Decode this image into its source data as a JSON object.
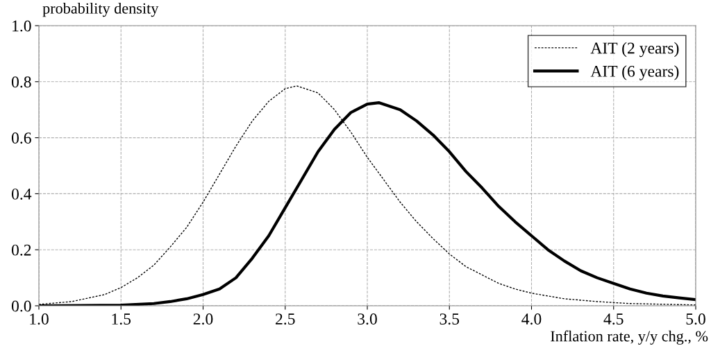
{
  "chart_data": {
    "type": "line",
    "ylabel": "probability density",
    "xlabel": "Inflation rate, y/y chg., %",
    "xlim": [
      1.0,
      5.0
    ],
    "ylim": [
      0.0,
      1.0
    ],
    "xticks": [
      {
        "value": 1.0,
        "label": "1.0"
      },
      {
        "value": 1.5,
        "label": "1.5"
      },
      {
        "value": 2.0,
        "label": "2.0"
      },
      {
        "value": 2.5,
        "label": "2.5"
      },
      {
        "value": 3.0,
        "label": "3.0"
      },
      {
        "value": 3.5,
        "label": "3.5"
      },
      {
        "value": 4.0,
        "label": "4.0"
      },
      {
        "value": 4.5,
        "label": "4.5"
      },
      {
        "value": 5.0,
        "label": "5.0"
      }
    ],
    "yticks": [
      {
        "value": 0.0,
        "label": "0.0"
      },
      {
        "value": 0.2,
        "label": "0.2"
      },
      {
        "value": 0.4,
        "label": "0.4"
      },
      {
        "value": 0.6,
        "label": "0.6"
      },
      {
        "value": 0.8,
        "label": "0.8"
      },
      {
        "value": 1.0,
        "label": "1.0"
      }
    ],
    "grid": true,
    "legend": "top right",
    "series": [
      {
        "name": "AIT (2 years)",
        "color": "#000000",
        "line_style": "dotted",
        "x": [
          1.0,
          1.2,
          1.4,
          1.5,
          1.6,
          1.7,
          1.8,
          1.9,
          2.0,
          2.1,
          2.2,
          2.3,
          2.4,
          2.5,
          2.57,
          2.7,
          2.8,
          2.9,
          3.0,
          3.1,
          3.2,
          3.3,
          3.4,
          3.5,
          3.6,
          3.7,
          3.8,
          3.9,
          4.0,
          4.2,
          4.4,
          4.6,
          5.0
        ],
        "values": [
          0.005,
          0.015,
          0.04,
          0.065,
          0.1,
          0.145,
          0.21,
          0.28,
          0.37,
          0.47,
          0.57,
          0.66,
          0.73,
          0.775,
          0.785,
          0.76,
          0.7,
          0.62,
          0.53,
          0.45,
          0.37,
          0.3,
          0.24,
          0.185,
          0.14,
          0.11,
          0.08,
          0.06,
          0.045,
          0.025,
          0.015,
          0.008,
          0.003
        ]
      },
      {
        "name": "AIT (6 years)",
        "color": "#000000",
        "line_style": "solid",
        "x": [
          1.0,
          1.5,
          1.7,
          1.8,
          1.9,
          2.0,
          2.1,
          2.2,
          2.3,
          2.4,
          2.5,
          2.6,
          2.7,
          2.8,
          2.9,
          3.0,
          3.07,
          3.2,
          3.3,
          3.4,
          3.5,
          3.6,
          3.7,
          3.8,
          3.9,
          4.0,
          4.1,
          4.2,
          4.3,
          4.4,
          4.5,
          4.6,
          4.7,
          4.8,
          4.9,
          5.0
        ],
        "values": [
          0.0,
          0.002,
          0.008,
          0.015,
          0.025,
          0.04,
          0.06,
          0.1,
          0.17,
          0.25,
          0.35,
          0.45,
          0.55,
          0.63,
          0.69,
          0.72,
          0.725,
          0.7,
          0.66,
          0.61,
          0.55,
          0.48,
          0.42,
          0.355,
          0.3,
          0.25,
          0.2,
          0.16,
          0.125,
          0.1,
          0.08,
          0.06,
          0.045,
          0.035,
          0.028,
          0.022
        ]
      }
    ]
  }
}
